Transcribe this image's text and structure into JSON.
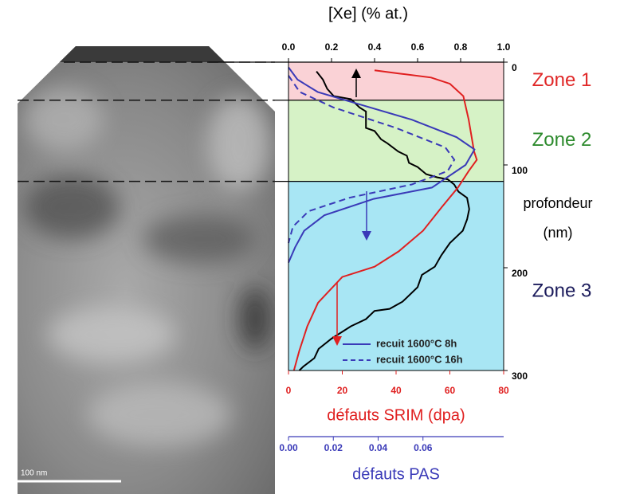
{
  "chart_data": {
    "type": "line",
    "ylim": [
      0,
      300
    ],
    "yticks": [
      0,
      100,
      200,
      300
    ],
    "y_label": [
      "profondeur",
      "(nm)"
    ],
    "x_axes": [
      {
        "label": "[Xe] (% at.)",
        "color": "#000000",
        "xlim": [
          0,
          1
        ],
        "xticks": [
          {
            "value": 0,
            "label": "0.0"
          },
          0.2,
          0.4,
          0.6,
          0.8,
          {
            "value": 1,
            "label": "1.0"
          }
        ]
      },
      {
        "label": "défauts SRIM (dpa)",
        "color": "#e02020",
        "xlim": [
          0,
          80
        ],
        "xticks": [
          0,
          20,
          40,
          60,
          80
        ]
      },
      {
        "label": "défauts PAS",
        "color": "#3a3ab8",
        "xlim": [
          0,
          0.096
        ],
        "xticks": [
          {
            "value": 0,
            "label": "0.00"
          },
          {
            "value": 0.02,
            "label": "0.02"
          },
          {
            "value": 0.04,
            "label": "0.04"
          },
          {
            "value": 0.06,
            "label": "0.06"
          }
        ]
      }
    ],
    "zones": [
      {
        "label": "Zone 1",
        "color": "#e02828",
        "fill": "#fad2d6",
        "from": 0,
        "to": 37
      },
      {
        "label": "Zone 2",
        "color": "#2e8b2e",
        "fill": "#d6f2c6",
        "from": 37,
        "to": 116
      },
      {
        "label": "Zone 3",
        "color": "#1c1c5c",
        "fill": "#a8e6f4",
        "from": 116,
        "to": 300
      }
    ],
    "series": [
      {
        "color": "#000000",
        "dash": false,
        "x_axis": 0,
        "values": [
          0.13,
          0.16,
          0.18,
          0.21,
          0.29,
          0.33,
          0.36,
          0.36,
          0.4,
          0.43,
          0.46,
          0.51,
          0.55,
          0.56,
          0.6,
          0.64,
          0.69,
          0.74,
          0.77,
          0.79,
          0.83,
          0.84,
          0.83,
          0.81,
          0.75,
          0.71,
          0.68,
          0.62,
          0.6,
          0.53,
          0.47,
          0.4,
          0.36,
          0.29,
          0.2,
          0.14,
          0.12,
          0.07,
          0.05
        ],
        "depth": [
          9,
          17,
          26,
          33,
          36,
          44,
          48,
          64,
          67,
          75,
          79,
          87,
          91,
          98,
          102,
          109,
          112,
          114,
          119,
          126,
          132,
          143,
          153,
          164,
          176,
          188,
          199,
          207,
          219,
          233,
          240,
          242,
          250,
          257,
          269,
          279,
          288,
          296,
          300
        ]
      },
      {
        "color": "#e02020",
        "dash": false,
        "x_axis": 1,
        "values": [
          32,
          41,
          53,
          60,
          65,
          67,
          69,
          70,
          67,
          63,
          57,
          50,
          41,
          32,
          20,
          11,
          7,
          4,
          2
        ],
        "depth": [
          8,
          11,
          15,
          21,
          33,
          56,
          87,
          95,
          106,
          122,
          141,
          164,
          184,
          199,
          209,
          234,
          257,
          281,
          300
        ]
      },
      {
        "name": "recuit 1600°C 8h",
        "color": "#3a3ab8",
        "dash": false,
        "x_axis": 2,
        "values": [
          0,
          0.004,
          0.013,
          0.03,
          0.055,
          0.075,
          0.083,
          0.079,
          0.064,
          0.038,
          0.016,
          0.007,
          0.003,
          0
        ],
        "depth": [
          5,
          17,
          29,
          40,
          56,
          73,
          85,
          100,
          122,
          133,
          149,
          164,
          180,
          195
        ]
      },
      {
        "name": "recuit 1600°C 16h",
        "color": "#3a3ab8",
        "dash": true,
        "x_axis": 2,
        "values": [
          0,
          0.005,
          0.02,
          0.048,
          0.07,
          0.074,
          0.071,
          0.055,
          0.027,
          0.009,
          0.002,
          0
        ],
        "depth": [
          13,
          29,
          44,
          64,
          83,
          95,
          106,
          119,
          132,
          145,
          160,
          176
        ]
      }
    ],
    "scale_bar": "100 nm"
  }
}
